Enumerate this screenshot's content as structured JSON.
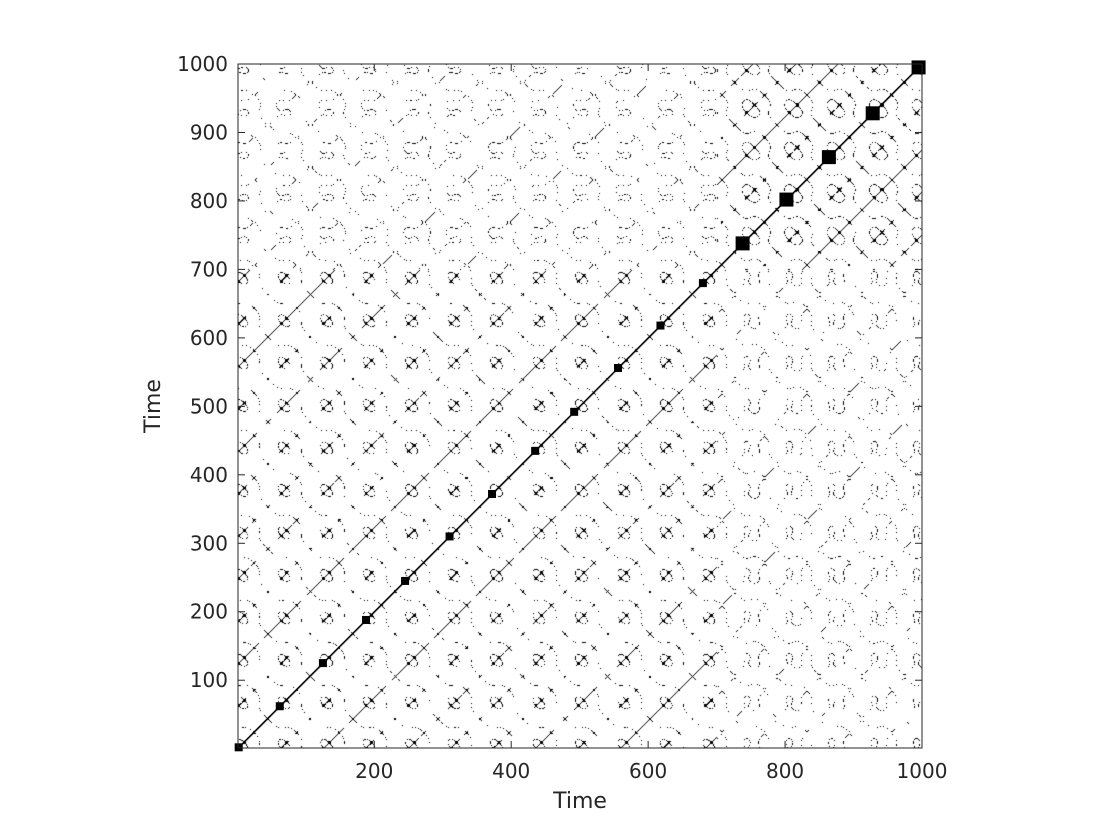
{
  "chart_data": {
    "type": "heatmap",
    "subtype": "recurrence-plot",
    "title": "",
    "xlabel": "Time",
    "ylabel": "Time",
    "xlim": [
      1,
      1000
    ],
    "ylim": [
      1,
      1000
    ],
    "x_ticks": [
      200,
      400,
      600,
      800,
      1000
    ],
    "y_ticks": [
      100,
      200,
      300,
      400,
      500,
      600,
      700,
      800,
      900,
      1000
    ],
    "colormap": {
      "recurrent": "#000000",
      "non_recurrent": "#ffffff"
    },
    "grid": false,
    "legend": "none",
    "regimes": [
      {
        "range": [
          1,
          700
        ],
        "period": 62,
        "kind": "symmetric-lobes"
      },
      {
        "range": [
          720,
          1000
        ],
        "period": 62,
        "kind": "converging-lobes"
      }
    ],
    "diagonal_points": [
      2,
      62,
      125,
      188,
      245,
      310,
      372,
      435,
      492,
      556,
      618,
      680,
      738,
      802,
      864,
      928,
      995
    ]
  }
}
